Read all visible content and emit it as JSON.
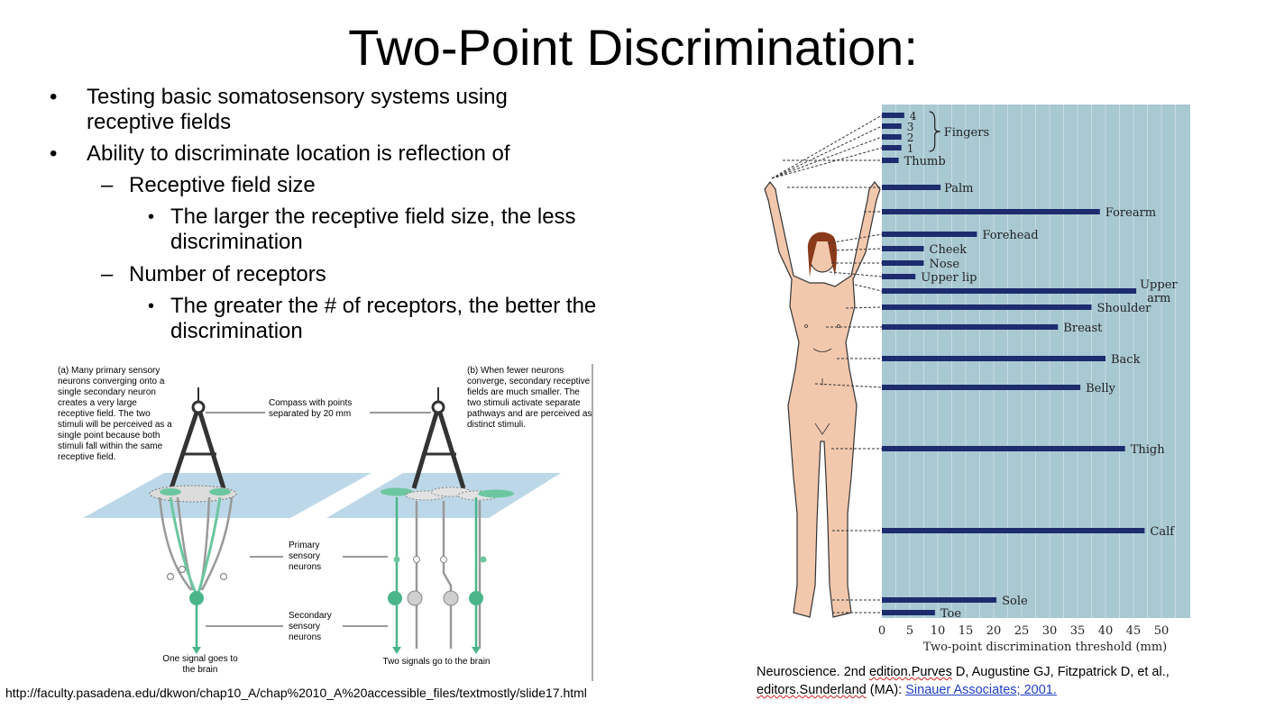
{
  "slide": {
    "title": "Two-Point Discrimination:",
    "bullets": [
      {
        "level": 1,
        "marker": "•",
        "text": "Testing basic somatosensory systems using receptive fields"
      },
      {
        "level": 1,
        "marker": "•",
        "text": "Ability to discriminate location is reflection of"
      },
      {
        "level": 2,
        "marker": "–",
        "text": "Receptive field size"
      },
      {
        "level": 3,
        "marker": "•",
        "text": "The larger the receptive field size, the less discrimination"
      },
      {
        "level": 2,
        "marker": "–",
        "text": "Number of receptors"
      },
      {
        "level": 3,
        "marker": "•",
        "text": "The greater the # of receptors, the better the discrimination"
      }
    ],
    "url_caption": "http://faculty.pasadena.edu/dkwon/chap10_A/chap%2010_A%20accessible_files/textmostly/slide17.html",
    "source": {
      "part1": "Neuroscience. 2nd ",
      "part2": "edition.Purves",
      "part3": " D, Augustine GJ, Fitzpatrick D, et al., ",
      "part4": "editors.Sunderland",
      "part5": " (MA): ",
      "link": "Sinauer Associates; 2001."
    }
  },
  "diagram": {
    "panel_a": "(a) Many primary sensory neurons converging onto a single secondary neuron creates a very large receptive field. The two stimuli will be perceived as a single point because both stimuli fall within the same receptive field.",
    "panel_b": "(b) When fewer neurons converge, secondary receptive fields are much smaller. The two stimuli activate separate pathways and are perceived as distinct stimuli.",
    "compass_label": "Compass with points separated by 20 mm",
    "primary_label": "Primary sensory neurons",
    "secondary_label": "Secondary sensory neurons",
    "one_signal": "One signal goes to the brain",
    "two_signals": "Two signals go to the brain"
  },
  "chart_data": {
    "type": "bar",
    "orientation": "horizontal",
    "xlabel": "Two-point discrimination threshold (mm)",
    "xlim": [
      0,
      55
    ],
    "xticks": [
      0,
      5,
      10,
      15,
      20,
      25,
      30,
      35,
      40,
      45,
      50
    ],
    "finger_group_label": "Fingers",
    "categories": [
      "4",
      "3",
      "2",
      "1",
      "Thumb",
      "Palm",
      "Forearm",
      "Forehead",
      "Cheek",
      "Nose",
      "Upper lip",
      "Upper arm",
      "Shoulder",
      "Breast",
      "Back",
      "Belly",
      "Thigh",
      "Calf",
      "Sole",
      "Toe"
    ],
    "values": [
      4,
      3.5,
      3.5,
      3.5,
      3,
      10.5,
      39,
      17,
      7.5,
      7.5,
      6,
      45.5,
      37.5,
      31.5,
      40,
      35.5,
      43.5,
      47,
      20.5,
      9.5
    ],
    "colors": {
      "bar": "#1c2c6e",
      "panel": "#a8c8d2",
      "grid": "#c8dde2",
      "skin": "#f2c8ad",
      "hair": "#8a3a1a"
    }
  }
}
